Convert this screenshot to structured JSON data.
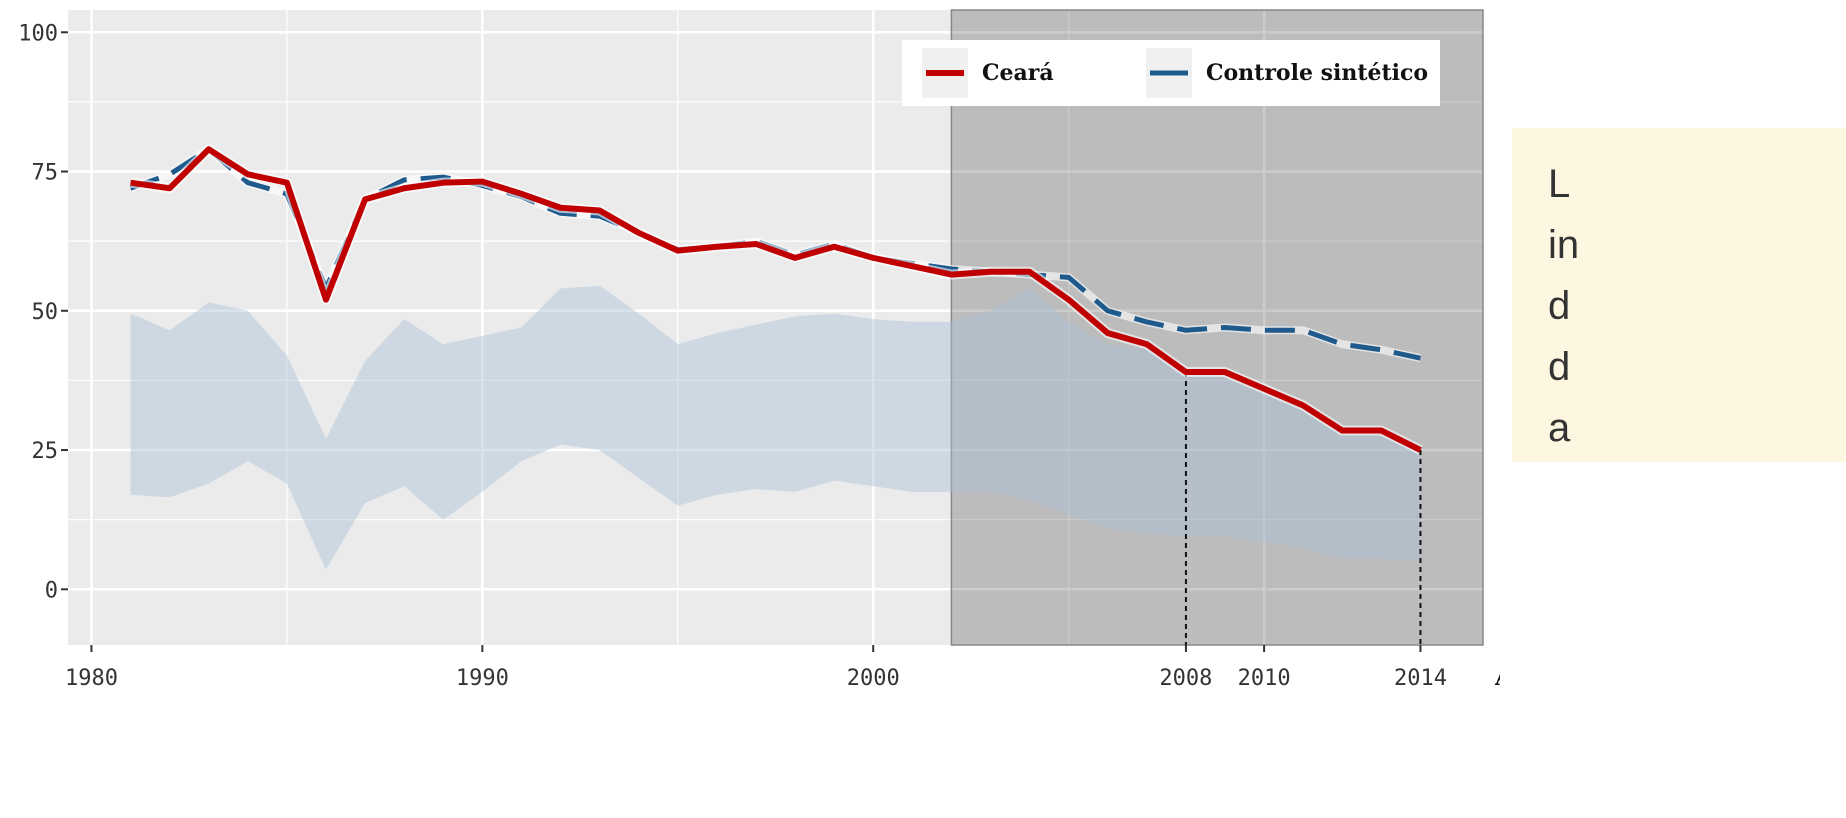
{
  "chart_data": {
    "type": "line",
    "x_label": "Anos",
    "x": [
      1981,
      1982,
      1983,
      1984,
      1985,
      1986,
      1987,
      1988,
      1989,
      1990,
      1991,
      1992,
      1993,
      1994,
      1995,
      1996,
      1997,
      1998,
      1999,
      2000,
      2001,
      2002,
      2003,
      2004,
      2005,
      2006,
      2007,
      2008,
      2009,
      2010,
      2011,
      2012,
      2013,
      2014
    ],
    "series": [
      {
        "name": "Ceará",
        "color": "#c00000",
        "dash": false,
        "values": [
          73,
          72,
          79,
          74.5,
          73,
          52,
          70,
          72,
          73,
          73.2,
          71,
          68.5,
          68,
          64,
          60.8,
          61.5,
          62,
          59.5,
          61.5,
          59.5,
          58,
          56.5,
          57,
          57,
          52,
          46,
          44,
          39,
          39,
          36,
          33,
          28.5,
          28.5,
          25
        ]
      },
      {
        "name": "Controle sintético",
        "color": "#1f5a8c",
        "dash": true,
        "values": [
          72,
          74.5,
          79,
          73,
          71,
          54,
          70,
          73.5,
          74,
          72.5,
          70.5,
          67.5,
          67,
          64,
          61,
          61.5,
          62.5,
          60,
          62,
          59.5,
          58.5,
          57.5,
          57,
          56.5,
          56,
          50,
          48,
          46.5,
          47,
          46.5,
          46.5,
          44,
          43,
          41.5
        ]
      }
    ],
    "band": {
      "color": "#a9c0d8",
      "upper": [
        49.5,
        46.5,
        51.5,
        50,
        42,
        27,
        41,
        48.5,
        44,
        45.5,
        47,
        54,
        54.5,
        49.5,
        44,
        46,
        47.5,
        49,
        49.5,
        48.5,
        48,
        48,
        50,
        54,
        48,
        44,
        43,
        39,
        38,
        36,
        33,
        28.5,
        28,
        25
      ],
      "lower": [
        17,
        16.5,
        19,
        23,
        19,
        3.5,
        15.5,
        18.5,
        12.5,
        17.5,
        23,
        26,
        25,
        20,
        15,
        17,
        18,
        17.5,
        19.5,
        18.5,
        17.5,
        17.5,
        17.5,
        16,
        13.5,
        11,
        10,
        9.5,
        9.5,
        8.5,
        7.5,
        5.5,
        5.5,
        5
      ]
    },
    "xlim": [
      1979.4,
      2015.6
    ],
    "ylim": [
      -10,
      104
    ],
    "xticks": [
      1980,
      1990,
      2000,
      2008,
      2010,
      2014
    ],
    "yticks": [
      0,
      25,
      50,
      75,
      100
    ],
    "grid": true,
    "grid_x": [
      1980,
      1985,
      1990,
      1995,
      2000,
      2005,
      2010
    ],
    "grid_y": [
      0,
      12.5,
      25,
      37.5,
      50,
      62.5,
      75,
      87.5,
      100
    ],
    "shade_from": 2002,
    "droplines": [
      2008,
      2014
    ],
    "legend": "top-right"
  },
  "annotation": {
    "lines": [
      "L",
      "in",
      "d",
      "d",
      "a"
    ]
  }
}
